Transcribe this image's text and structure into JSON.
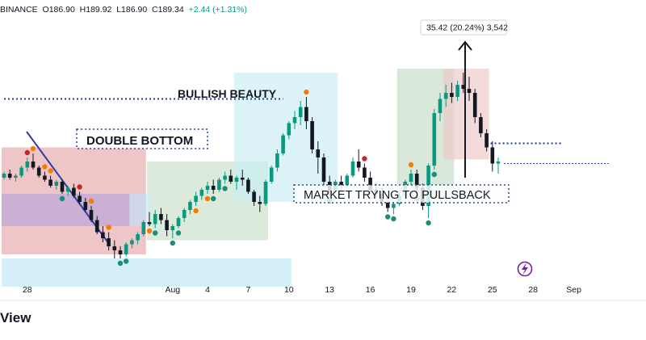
{
  "header": {
    "exchange": "BINANCE",
    "open": "O186.90",
    "high": "H189.92",
    "low": "L186.90",
    "close": "C189.34",
    "change": "+2.44 (+1.31%)"
  },
  "annotations": {
    "double_bottom": "DOUBLE BOTTOM",
    "bullish_beauty": "BULLISH BEAUTY",
    "pullback": "MARKET TRYING TO PULLSBACK",
    "measure": "35.42 (20.24%) 3,542"
  },
  "branding": {
    "text": "View",
    "icon": "lightning-icon"
  },
  "colors": {
    "up": "#089981",
    "down": "#131722",
    "dot_red": "#c62828",
    "dot_orange": "#f57c00",
    "dot_green": "#1e8c76",
    "accent": "#7b1fa2"
  },
  "chart_data": {
    "type": "candlestick",
    "x_ticks": [
      "28",
      "Aug",
      "4",
      "7",
      "10",
      "13",
      "16",
      "19",
      "22",
      "25",
      "28",
      "Sep"
    ],
    "ohlc": [
      [
        148,
        151,
        147,
        150
      ],
      [
        150,
        152,
        147,
        148
      ],
      [
        148,
        150,
        146,
        149
      ],
      [
        149,
        154,
        148,
        153
      ],
      [
        153,
        158,
        151,
        156
      ],
      [
        156,
        160,
        152,
        153
      ],
      [
        153,
        154,
        148,
        149
      ],
      [
        149,
        151,
        146,
        147
      ],
      [
        147,
        149,
        143,
        144
      ],
      [
        144,
        147,
        142,
        146
      ],
      [
        146,
        147,
        140,
        141
      ],
      [
        141,
        144,
        139,
        143
      ],
      [
        143,
        145,
        138,
        139
      ],
      [
        139,
        141,
        135,
        136
      ],
      [
        136,
        138,
        131,
        132
      ],
      [
        132,
        134,
        126,
        127
      ],
      [
        127,
        129,
        120,
        121
      ],
      [
        121,
        124,
        116,
        118
      ],
      [
        118,
        121,
        112,
        114
      ],
      [
        114,
        117,
        108,
        112
      ],
      [
        112,
        114,
        108,
        110
      ],
      [
        110,
        116,
        109,
        115
      ],
      [
        115,
        118,
        113,
        117
      ],
      [
        117,
        121,
        115,
        120
      ],
      [
        120,
        127,
        119,
        126
      ],
      [
        126,
        131,
        124,
        125
      ],
      [
        125,
        132,
        123,
        130
      ],
      [
        130,
        133,
        125,
        127
      ],
      [
        127,
        130,
        119,
        122
      ],
      [
        122,
        125,
        118,
        124
      ],
      [
        124,
        129,
        123,
        128
      ],
      [
        128,
        133,
        126,
        132
      ],
      [
        132,
        137,
        130,
        136
      ],
      [
        136,
        141,
        134,
        139
      ],
      [
        139,
        143,
        137,
        142
      ],
      [
        142,
        146,
        140,
        144
      ],
      [
        144,
        147,
        140,
        142
      ],
      [
        142,
        148,
        141,
        147
      ],
      [
        147,
        151,
        145,
        149
      ],
      [
        149,
        152,
        145,
        146
      ],
      [
        146,
        149,
        142,
        148
      ],
      [
        148,
        152,
        144,
        147
      ],
      [
        147,
        148,
        140,
        141
      ],
      [
        141,
        142,
        134,
        136
      ],
      [
        136,
        139,
        131,
        135
      ],
      [
        135,
        147,
        134,
        146
      ],
      [
        146,
        154,
        145,
        153
      ],
      [
        153,
        162,
        151,
        160
      ],
      [
        160,
        170,
        159,
        169
      ],
      [
        169,
        176,
        167,
        175
      ],
      [
        175,
        181,
        172,
        178
      ],
      [
        178,
        186,
        174,
        183
      ],
      [
        183,
        188,
        172,
        176
      ],
      [
        176,
        178,
        160,
        162
      ],
      [
        162,
        166,
        150,
        158
      ],
      [
        158,
        160,
        144,
        146
      ],
      [
        146,
        149,
        139,
        141
      ],
      [
        141,
        147,
        140,
        146
      ],
      [
        146,
        149,
        142,
        144
      ],
      [
        144,
        150,
        143,
        149
      ],
      [
        149,
        158,
        148,
        156
      ],
      [
        156,
        162,
        151,
        153
      ],
      [
        153,
        155,
        146,
        148
      ],
      [
        148,
        151,
        140,
        142
      ],
      [
        142,
        145,
        138,
        140
      ],
      [
        140,
        143,
        134,
        136
      ],
      [
        136,
        139,
        131,
        133
      ],
      [
        133,
        136,
        130,
        135
      ],
      [
        135,
        141,
        134,
        139
      ],
      [
        139,
        147,
        138,
        146
      ],
      [
        146,
        152,
        144,
        150
      ],
      [
        150,
        152,
        140,
        143
      ],
      [
        143,
        145,
        132,
        134
      ],
      [
        134,
        155,
        128,
        154
      ],
      [
        154,
        182,
        152,
        180
      ],
      [
        180,
        190,
        176,
        187
      ],
      [
        187,
        194,
        183,
        190
      ],
      [
        190,
        195,
        185,
        188
      ],
      [
        188,
        196,
        186,
        194
      ],
      [
        194,
        200,
        190,
        192
      ],
      [
        192,
        198,
        186,
        190
      ],
      [
        190,
        192,
        175,
        178
      ],
      [
        178,
        180,
        168,
        170
      ],
      [
        170,
        172,
        161,
        163
      ],
      [
        163,
        166,
        151,
        155
      ],
      [
        155,
        158,
        150,
        156
      ]
    ],
    "x_tick_bar_index": [
      4,
      29,
      35,
      42,
      49,
      56,
      63,
      70,
      77,
      84,
      91,
      98
    ],
    "ylim": [
      100,
      220
    ],
    "levels": [
      {
        "name": "resistance-left",
        "value": 187,
        "from_bar": 0,
        "to_bar": 48
      },
      {
        "name": "resistance-right",
        "value": 165,
        "from_bar": 83,
        "to_bar": 96
      },
      {
        "name": "close-line",
        "value": 155,
        "from_bar": 86,
        "to_bar": 104
      }
    ],
    "zones": [
      {
        "name": "zone-red-1",
        "from_bar": 0,
        "to_bar": 24,
        "top": 163,
        "bottom": 110,
        "color": "#e7a8aa"
      },
      {
        "name": "zone-purple",
        "from_bar": 0,
        "to_bar": 24,
        "top": 140,
        "bottom": 124,
        "color": "#b7a4d8"
      },
      {
        "name": "zone-green-1",
        "from_bar": 25,
        "to_bar": 45,
        "top": 156,
        "bottom": 117,
        "color": "#c7dfc7"
      },
      {
        "name": "zone-cyan-tall",
        "from_bar": 40,
        "to_bar": 57,
        "top": 200,
        "bottom": 136,
        "color": "#c9eef5"
      },
      {
        "name": "zone-cyan-base",
        "from_bar": 0,
        "to_bar": 49,
        "top": 108,
        "bottom": 94,
        "color": "#bde7f2"
      },
      {
        "name": "zone-green-2",
        "from_bar": 68,
        "to_bar": 77,
        "top": 202,
        "bottom": 138,
        "color": "#c4dcc4"
      },
      {
        "name": "zone-red-2",
        "from_bar": 76,
        "to_bar": 83,
        "top": 202,
        "bottom": 157,
        "color": "#edc7c8"
      },
      {
        "name": "zone-cyan-small",
        "from_bar": 22,
        "to_bar": 25,
        "top": 140,
        "bottom": 124,
        "color": "#d3ecf7"
      }
    ],
    "dots": [
      [
        4,
        "red",
        1
      ],
      [
        5,
        "orange",
        1
      ],
      [
        7,
        "orange",
        1
      ],
      [
        8,
        "orange",
        1
      ],
      [
        10,
        "green",
        0
      ],
      [
        13,
        "red",
        1
      ],
      [
        15,
        "orange",
        1
      ],
      [
        18,
        "orange",
        1
      ],
      [
        20,
        "green",
        0
      ],
      [
        21,
        "green",
        0
      ],
      [
        25,
        "orange",
        0
      ],
      [
        26,
        "green",
        0
      ],
      [
        29,
        "green",
        0
      ],
      [
        30,
        "green",
        0
      ],
      [
        33,
        "orange",
        0
      ],
      [
        35,
        "orange",
        0
      ],
      [
        36,
        "green",
        0
      ],
      [
        38,
        "green",
        0
      ],
      [
        52,
        "orange",
        1
      ],
      [
        56,
        "green",
        0
      ],
      [
        62,
        "red",
        1
      ],
      [
        66,
        "green",
        0
      ],
      [
        67,
        "green",
        0
      ],
      [
        70,
        "orange",
        1
      ],
      [
        71,
        "green",
        0
      ],
      [
        73,
        "green",
        0
      ],
      [
        74,
        "green",
        0
      ]
    ]
  }
}
